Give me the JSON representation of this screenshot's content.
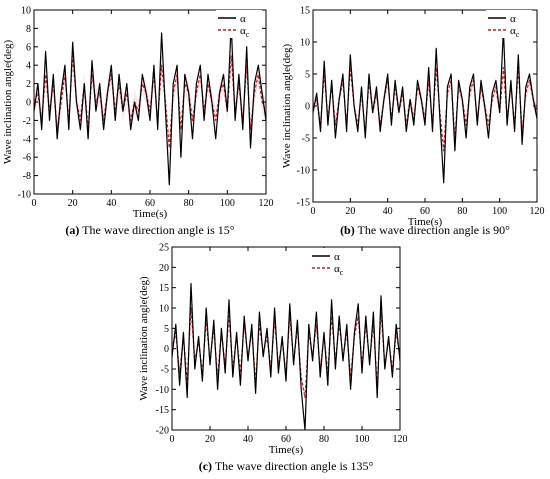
{
  "chart_data": [
    {
      "type": "line",
      "ylabel": "Wave inclination angle(deg)",
      "xlabel": "Time(s)",
      "caption_label": "(a)",
      "caption_text": " The wave direction angle is 15°",
      "xlim": [
        0,
        120
      ],
      "ylim": [
        -10,
        10
      ],
      "xticks": [
        0,
        20,
        40,
        60,
        80,
        100,
        120
      ],
      "yticks": [
        -10,
        -8,
        -6,
        -4,
        -2,
        0,
        2,
        4,
        6,
        8,
        10
      ],
      "x": [
        0,
        2,
        4,
        6,
        8,
        10,
        12,
        14,
        16,
        18,
        20,
        22,
        24,
        26,
        28,
        30,
        32,
        34,
        36,
        38,
        40,
        42,
        44,
        46,
        48,
        50,
        52,
        54,
        56,
        58,
        60,
        62,
        64,
        66,
        68,
        70,
        72,
        74,
        76,
        78,
        80,
        82,
        84,
        86,
        88,
        90,
        92,
        94,
        96,
        98,
        100,
        102,
        104,
        106,
        108,
        110,
        112,
        114,
        116,
        118,
        120
      ],
      "series": [
        {
          "name": "α",
          "values": [
            -1,
            2,
            -3,
            5.5,
            -2,
            3,
            -4,
            1,
            4,
            -3,
            6.5,
            0,
            -3,
            2,
            -4,
            4.5,
            -1,
            2,
            -3,
            1,
            4,
            -2,
            3,
            -1,
            2,
            -3,
            0,
            -2,
            3,
            1,
            -2,
            4,
            -3,
            7.5,
            -1,
            -9,
            2,
            4,
            -6,
            3,
            1,
            -4,
            2,
            4,
            -2,
            3,
            0,
            -4,
            1,
            3,
            -1,
            8.5,
            -2,
            3,
            -3,
            6,
            -5,
            2,
            4,
            1,
            -2
          ]
        },
        {
          "name": "αc",
          "values": [
            0,
            1,
            -2,
            3,
            -1,
            2,
            -3,
            0,
            3,
            -2,
            5,
            0,
            -2,
            2,
            -3,
            3,
            0,
            1,
            -2,
            1,
            3,
            -1,
            2,
            -1,
            1,
            -2,
            0,
            -1,
            2,
            1,
            -1,
            3,
            -2,
            4,
            0,
            -5,
            1,
            3,
            -3,
            2,
            1,
            -2,
            1,
            3,
            -1,
            2,
            0,
            -2,
            1,
            2,
            -1,
            5,
            -1,
            2,
            -2,
            4,
            -3,
            1,
            3,
            0,
            -1
          ]
        }
      ]
    },
    {
      "type": "line",
      "ylabel": "Wave inclination angle(deg)",
      "xlabel": "Time(s)",
      "caption_label": "(b)",
      "caption_text": " The wave direction angle is 90°",
      "xlim": [
        0,
        120
      ],
      "ylim": [
        -15,
        15
      ],
      "xticks": [
        0,
        20,
        40,
        60,
        80,
        100,
        120
      ],
      "yticks": [
        -15,
        -10,
        -5,
        0,
        5,
        10,
        15
      ],
      "x": [
        0,
        2,
        4,
        6,
        8,
        10,
        12,
        14,
        16,
        18,
        20,
        22,
        24,
        26,
        28,
        30,
        32,
        34,
        36,
        38,
        40,
        42,
        44,
        46,
        48,
        50,
        52,
        54,
        56,
        58,
        60,
        62,
        64,
        66,
        68,
        70,
        72,
        74,
        76,
        78,
        80,
        82,
        84,
        86,
        88,
        90,
        92,
        94,
        96,
        98,
        100,
        102,
        104,
        106,
        108,
        110,
        112,
        114,
        116,
        118,
        120
      ],
      "series": [
        {
          "name": "α",
          "values": [
            -1,
            2,
            -4,
            7,
            -3,
            4,
            -5,
            1,
            5,
            -4,
            8,
            0,
            -4,
            3,
            -5,
            5,
            -1,
            3,
            -4,
            1,
            5,
            -3,
            4,
            -1,
            3,
            -4,
            1,
            -3,
            4,
            1,
            -3,
            6,
            -4,
            9,
            -2,
            -12,
            3,
            5,
            -7,
            4,
            1,
            -5,
            3,
            5,
            -3,
            4,
            0,
            -5,
            2,
            4,
            -1,
            12,
            -3,
            4,
            -4,
            8,
            -6,
            3,
            5,
            1,
            -2
          ]
        },
        {
          "name": "αc",
          "values": [
            0,
            1,
            -3,
            5,
            -2,
            3,
            -3,
            1,
            4,
            -3,
            6,
            0,
            -3,
            2,
            -4,
            4,
            -1,
            2,
            -3,
            1,
            4,
            -2,
            3,
            -1,
            2,
            -3,
            1,
            -2,
            3,
            1,
            -2,
            4,
            -3,
            6,
            -1,
            -7,
            2,
            4,
            -5,
            3,
            1,
            -3,
            2,
            4,
            -2,
            3,
            0,
            -3,
            1,
            3,
            -1,
            6,
            -2,
            3,
            -3,
            6,
            -4,
            2,
            4,
            1,
            -1
          ]
        }
      ]
    },
    {
      "type": "line",
      "ylabel": "Wave inclination angle(deg)",
      "xlabel": "Time(s)",
      "caption_label": "(c)",
      "caption_text": " The wave direction angle is 135°",
      "xlim": [
        0,
        120
      ],
      "ylim": [
        -20,
        25
      ],
      "xticks": [
        0,
        20,
        40,
        60,
        80,
        100,
        120
      ],
      "yticks": [
        -20,
        -15,
        -10,
        -5,
        0,
        5,
        10,
        15,
        20,
        25
      ],
      "x": [
        0,
        2,
        4,
        6,
        8,
        10,
        12,
        14,
        16,
        18,
        20,
        22,
        24,
        26,
        28,
        30,
        32,
        34,
        36,
        38,
        40,
        42,
        44,
        46,
        48,
        50,
        52,
        54,
        56,
        58,
        60,
        62,
        64,
        66,
        68,
        70,
        72,
        74,
        76,
        78,
        80,
        82,
        84,
        86,
        88,
        90,
        92,
        94,
        96,
        98,
        100,
        102,
        104,
        106,
        108,
        110,
        112,
        114,
        116,
        118,
        120
      ],
      "series": [
        {
          "name": "α",
          "values": [
            -2,
            6,
            -9,
            4,
            -12,
            16,
            -5,
            3,
            -8,
            10,
            -4,
            7,
            -10,
            5,
            -6,
            12,
            -7,
            4,
            -9,
            8,
            -3,
            6,
            -11,
            9,
            -2,
            5,
            -7,
            10,
            -6,
            3,
            -8,
            11,
            -4,
            7,
            -10,
            -20,
            6,
            -3,
            9,
            -7,
            4,
            -9,
            12,
            -5,
            8,
            -3,
            6,
            -10,
            4,
            11,
            -6,
            8,
            -4,
            9,
            -12,
            13,
            -5,
            3,
            -7,
            6,
            -3
          ]
        },
        {
          "name": "αc",
          "values": [
            0,
            4,
            -6,
            3,
            -8,
            10,
            -3,
            2,
            -6,
            7,
            -3,
            5,
            -7,
            4,
            -4,
            8,
            -5,
            3,
            -6,
            6,
            -2,
            4,
            -8,
            6,
            -1,
            3,
            -5,
            7,
            -4,
            2,
            -6,
            8,
            -3,
            5,
            -7,
            -12,
            4,
            -2,
            6,
            -5,
            3,
            -6,
            8,
            -3,
            6,
            -2,
            4,
            -7,
            3,
            8,
            -4,
            6,
            -3,
            6,
            -9,
            9,
            -4,
            2,
            -5,
            4,
            -2
          ]
        }
      ]
    }
  ],
  "colors": {
    "alpha": "#000000",
    "alpha_c": "#b22222",
    "shade": "#f4b8c8"
  },
  "legend": {
    "alpha_label": "α",
    "alpha_c_base": "α",
    "alpha_c_sub": "c"
  }
}
